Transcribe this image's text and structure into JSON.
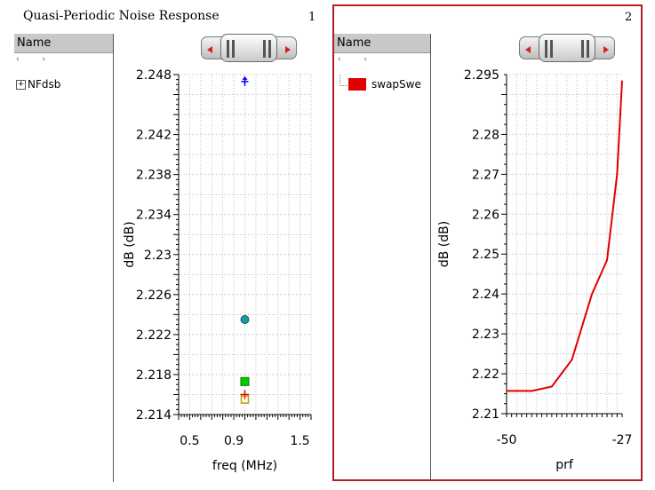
{
  "panel1": {
    "title": "Quasi-Periodic Noise Response",
    "number": "1",
    "name_header": "Name",
    "tree": [
      {
        "label": "NFdsb",
        "expander": "+"
      }
    ]
  },
  "panel2": {
    "number": "2",
    "name_header": "Name",
    "legend": [
      {
        "label": "swapSwe",
        "color": "#e00000"
      }
    ]
  },
  "chart_data": [
    {
      "type": "scatter",
      "xlabel": "freq (MHz)",
      "ylabel": "dB (dB)",
      "xlim": [
        0.4,
        1.6
      ],
      "ylim": [
        2.214,
        2.248
      ],
      "xticks": [
        "0.5",
        "0.9",
        "1.5"
      ],
      "yticks": [
        "2.214",
        "2.218",
        "2.222",
        "2.226",
        "2.23",
        "2.234",
        "2.238",
        "2.242",
        "2.248"
      ],
      "grid": true,
      "points": [
        {
          "x": 1.0,
          "y": 2.2473,
          "marker": "plus-arrow",
          "color": "#0000ff"
        },
        {
          "x": 1.0,
          "y": 2.2235,
          "marker": "circle",
          "color": "#1a9aa0"
        },
        {
          "x": 1.0,
          "y": 2.2173,
          "marker": "square",
          "color": "#00cc00"
        },
        {
          "x": 1.0,
          "y": 2.216,
          "marker": "plus",
          "color": "#e00000"
        },
        {
          "x": 1.0,
          "y": 2.2155,
          "marker": "open-square",
          "color": "#b8a000"
        }
      ]
    },
    {
      "type": "line",
      "xlabel": "prf",
      "ylabel": "dB (dB)",
      "xlim": [
        -50,
        -27
      ],
      "ylim": [
        2.21,
        2.295
      ],
      "xticks": [
        "-50",
        "-27"
      ],
      "yticks": [
        "2.21",
        "2.22",
        "2.23",
        "2.24",
        "2.25",
        "2.26",
        "2.27",
        "2.28",
        "2.295"
      ],
      "grid": true,
      "series": [
        {
          "color": "#e00000",
          "x": [
            -50,
            -45,
            -41,
            -37,
            -33,
            -30,
            -28,
            -27
          ],
          "y": [
            2.2157,
            2.2157,
            2.2168,
            2.2235,
            2.24,
            2.2485,
            2.27,
            2.2935
          ]
        }
      ]
    }
  ]
}
